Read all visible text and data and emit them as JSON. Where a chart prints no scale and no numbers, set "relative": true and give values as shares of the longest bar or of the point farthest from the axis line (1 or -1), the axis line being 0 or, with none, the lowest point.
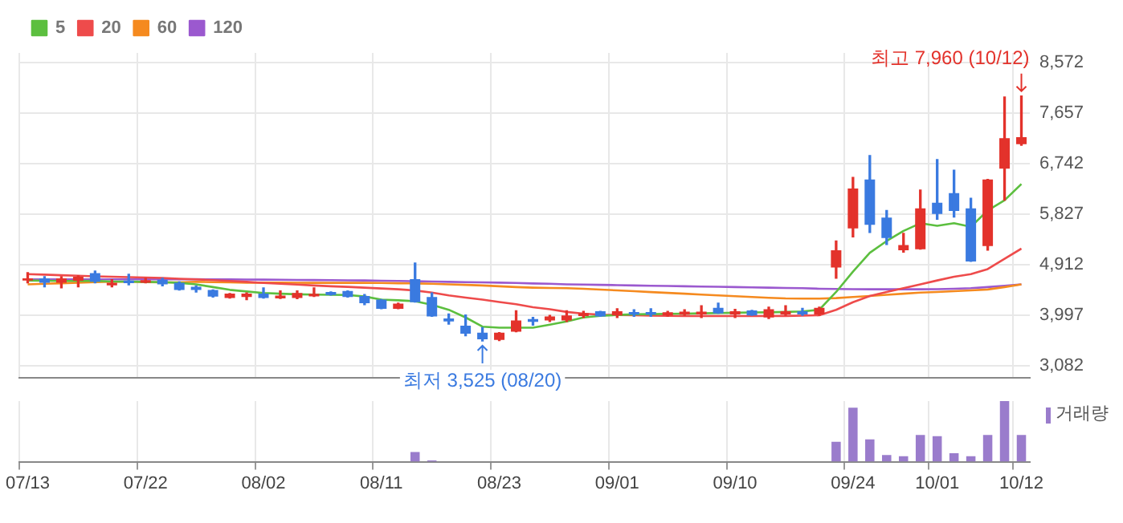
{
  "chart_data": [
    {
      "type": "candlestick",
      "categories": [
        "07/13",
        null,
        null,
        null,
        null,
        null,
        null,
        "07/22",
        null,
        null,
        null,
        null,
        null,
        null,
        "08/02",
        null,
        null,
        null,
        null,
        null,
        null,
        "08/11",
        null,
        null,
        null,
        null,
        null,
        null,
        "08/23",
        null,
        null,
        null,
        null,
        null,
        null,
        "09/01",
        null,
        null,
        null,
        null,
        null,
        null,
        "09/10",
        null,
        null,
        null,
        null,
        null,
        null,
        "09/24",
        null,
        null,
        null,
        null,
        "10/01",
        null,
        null,
        null,
        null,
        "10/12"
      ],
      "ohlc": [
        [
          4620,
          4762,
          4577,
          4660
        ],
        [
          4660,
          4688,
          4504,
          4577
        ],
        [
          4577,
          4688,
          4485,
          4660
        ],
        [
          4614,
          4706,
          4504,
          4688
        ],
        [
          4753,
          4790,
          4577,
          4596
        ],
        [
          4530,
          4633,
          4504,
          4577
        ],
        [
          4620,
          4734,
          4540,
          4570
        ],
        [
          4580,
          4660,
          4577,
          4625
        ],
        [
          4633,
          4660,
          4522,
          4550
        ],
        [
          4577,
          4596,
          4448,
          4448
        ],
        [
          4504,
          4522,
          4411,
          4448
        ],
        [
          4448,
          4448,
          4319,
          4328
        ],
        [
          4301,
          4384,
          4301,
          4384
        ],
        [
          4319,
          4393,
          4273,
          4384
        ],
        [
          4384,
          4485,
          4301,
          4301
        ],
        [
          4295,
          4430,
          4295,
          4345
        ],
        [
          4301,
          4430,
          4292,
          4393
        ],
        [
          4330,
          4485,
          4330,
          4380
        ],
        [
          4411,
          4411,
          4356,
          4356
        ],
        [
          4430,
          4430,
          4319,
          4319
        ],
        [
          4338,
          4365,
          4181,
          4209
        ],
        [
          4273,
          4273,
          4107,
          4107
        ],
        [
          4107,
          4209,
          4107,
          4199
        ],
        [
          4642,
          4937,
          4227,
          4227
        ],
        [
          4319,
          4393,
          3969,
          3969
        ],
        [
          3932,
          4015,
          3830,
          3877
        ],
        [
          3803,
          3996,
          3618,
          3655
        ],
        [
          3674,
          3766,
          3525,
          3554
        ],
        [
          3544,
          3674,
          3530,
          3674
        ],
        [
          3692,
          4070,
          3692,
          3895
        ],
        [
          3920,
          3950,
          3812,
          3870
        ],
        [
          3895,
          3987,
          3877,
          3969
        ],
        [
          3895,
          4070,
          3877,
          3987
        ],
        [
          3975,
          4061,
          3950,
          4025
        ],
        [
          4061,
          4061,
          3969,
          3969
        ],
        [
          3987,
          4107,
          3950,
          4061
        ],
        [
          4050,
          4089,
          3969,
          4000
        ],
        [
          4050,
          4107,
          3969,
          4000
        ],
        [
          3987,
          4061,
          3969,
          4043
        ],
        [
          4000,
          4089,
          3987,
          4055
        ],
        [
          4005,
          4162,
          3950,
          4055
        ],
        [
          4125,
          4209,
          4024,
          4024
        ],
        [
          4006,
          4098,
          3950,
          4061
        ],
        [
          4079,
          4079,
          3987,
          3987
        ],
        [
          3950,
          4135,
          3932,
          4098
        ],
        [
          4006,
          4162,
          3987,
          4061
        ],
        [
          4061,
          4116,
          3987,
          4006
        ],
        [
          4006,
          4135,
          3987,
          4125
        ],
        [
          4854,
          5334,
          4661,
          5168
        ],
        [
          5564,
          6487,
          5408,
          6284
        ],
        [
          6450,
          6883,
          5490,
          5629
        ],
        [
          5758,
          5887,
          5269,
          5389
        ],
        [
          5168,
          5472,
          5131,
          5260
        ],
        [
          5186,
          6256,
          5186,
          5924
        ],
        [
          6026,
          6810,
          5730,
          5823
        ],
        [
          6201,
          6616,
          5767,
          5878
        ],
        [
          5924,
          6109,
          4965,
          4965
        ],
        [
          5242,
          6450,
          5168,
          6450
        ],
        [
          6644,
          7944,
          6072,
          7197
        ],
        [
          7086,
          7960,
          7068,
          7215
        ]
      ],
      "series": [
        {
          "type": "line",
          "name": "5",
          "color": "#5cbf3f",
          "values": [
            4620,
            4615,
            4610,
            4612,
            4615,
            4600,
            4600,
            4595,
            4590,
            4577,
            4550,
            4500,
            4450,
            4420,
            4393,
            4380,
            4370,
            4365,
            4360,
            4356,
            4330,
            4273,
            4260,
            4245,
            4180,
            4089,
            3950,
            3784,
            3766,
            3766,
            3766,
            3820,
            3877,
            3950,
            3980,
            3995,
            4006,
            4010,
            4015,
            4020,
            4025,
            4030,
            4035,
            4040,
            4043,
            4050,
            4060,
            4089,
            4412,
            4780,
            5122,
            5334,
            5518,
            5656,
            5610,
            5656,
            5592,
            5887,
            6072,
            6367
          ]
        },
        {
          "type": "line",
          "name": "20",
          "color": "#ee4b4b",
          "values": [
            4734,
            4725,
            4715,
            4705,
            4695,
            4688,
            4680,
            4672,
            4665,
            4650,
            4640,
            4625,
            4610,
            4595,
            4575,
            4560,
            4545,
            4530,
            4515,
            4504,
            4490,
            4475,
            4460,
            4439,
            4400,
            4350,
            4310,
            4273,
            4230,
            4190,
            4135,
            4100,
            4050,
            4020,
            4000,
            3995,
            3990,
            3985,
            3980,
            3975,
            3975,
            3975,
            3975,
            3975,
            3975,
            3978,
            3982,
            3990,
            4089,
            4227,
            4338,
            4412,
            4480,
            4550,
            4620,
            4688,
            4734,
            4826,
            5011,
            5196
          ]
        },
        {
          "type": "line",
          "name": "60",
          "color": "#f58a1f",
          "values": [
            4550,
            4560,
            4570,
            4580,
            4590,
            4596,
            4596,
            4590,
            4585,
            4585,
            4596,
            4590,
            4585,
            4580,
            4580,
            4580,
            4578,
            4577,
            4577,
            4577,
            4577,
            4575,
            4570,
            4565,
            4560,
            4550,
            4540,
            4530,
            4515,
            4500,
            4490,
            4485,
            4480,
            4470,
            4455,
            4440,
            4425,
            4410,
            4395,
            4380,
            4365,
            4350,
            4335,
            4320,
            4305,
            4295,
            4292,
            4292,
            4300,
            4320,
            4338,
            4360,
            4380,
            4400,
            4412,
            4425,
            4440,
            4457,
            4500,
            4550
          ]
        },
        {
          "type": "line",
          "name": "120",
          "color": "#9b59cf",
          "values": [
            4640,
            4640,
            4640,
            4640,
            4640,
            4640,
            4640,
            4640,
            4640,
            4640,
            4642,
            4640,
            4638,
            4636,
            4634,
            4632,
            4630,
            4628,
            4625,
            4622,
            4620,
            4615,
            4610,
            4605,
            4600,
            4595,
            4590,
            4585,
            4580,
            4575,
            4565,
            4560,
            4550,
            4545,
            4540,
            4535,
            4530,
            4525,
            4520,
            4515,
            4510,
            4505,
            4500,
            4495,
            4490,
            4485,
            4480,
            4470,
            4465,
            4462,
            4460,
            4460,
            4460,
            4460,
            4462,
            4470,
            4480,
            4500,
            4525,
            4550
          ]
        }
      ],
      "ylim": [
        2860,
        8740
      ],
      "yticks": [
        {
          "value": 3082,
          "label": "3,082"
        },
        {
          "value": 3997,
          "label": "3,997"
        },
        {
          "value": 4912,
          "label": "4,912"
        },
        {
          "value": 5827,
          "label": "5,827"
        },
        {
          "value": 6742,
          "label": "6,742"
        },
        {
          "value": 7657,
          "label": "7,657"
        },
        {
          "value": 8572,
          "label": "8,572"
        }
      ],
      "annotations": [
        {
          "text": "최고 7,960 (10/12)",
          "x": "10/12",
          "y": 7960
        },
        {
          "text": "최저 3,525 (08/20)",
          "y": 3525
        }
      ],
      "grid": true,
      "legend": "top left",
      "marker": "none",
      "tick_labels": "y"
    },
    {
      "type": "bar",
      "relative": true,
      "categories": [
        "07/13",
        null,
        null,
        null,
        null,
        null,
        null,
        "07/22",
        null,
        null,
        null,
        null,
        null,
        null,
        "08/02",
        null,
        null,
        null,
        null,
        null,
        null,
        "08/11",
        null,
        null,
        null,
        null,
        null,
        null,
        "08/23",
        null,
        null,
        null,
        null,
        null,
        null,
        "09/01",
        null,
        null,
        null,
        null,
        null,
        null,
        "09/10",
        null,
        null,
        null,
        null,
        null,
        null,
        "09/24",
        null,
        null,
        null,
        null,
        "10/01",
        null,
        null,
        null,
        null,
        "10/12"
      ],
      "series": [
        {
          "name": "거래량",
          "color": "#9a7ccc",
          "values": [
            null,
            null,
            null,
            null,
            null,
            null,
            null,
            null,
            null,
            null,
            null,
            null,
            null,
            null,
            null,
            null,
            null,
            null,
            null,
            null,
            null,
            null,
            null,
            0.16,
            0.02,
            null,
            null,
            null,
            null,
            null,
            null,
            null,
            null,
            null,
            null,
            null,
            null,
            null,
            null,
            null,
            null,
            null,
            null,
            null,
            null,
            null,
            null,
            null,
            0.33,
            0.89,
            0.37,
            0.11,
            0.09,
            0.44,
            0.42,
            0.14,
            0.09,
            0.44,
            1,
            0.44
          ]
        }
      ],
      "grid": "x",
      "legend": "top right",
      "tick_labels": "x"
    }
  ]
}
